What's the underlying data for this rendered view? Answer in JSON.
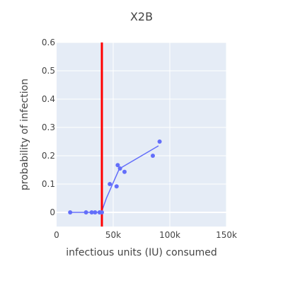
{
  "chart_data": {
    "type": "scatter",
    "title": "X2B",
    "xlabel": "infectious units (IU) consumed",
    "ylabel": "probability of infection",
    "xlim": [
      0,
      150000
    ],
    "ylim": [
      -0.05,
      0.6
    ],
    "x_ticks": [
      0,
      50000,
      100000,
      150000
    ],
    "x_tick_labels": [
      "0",
      "50k",
      "100k",
      "150k"
    ],
    "y_ticks": [
      0,
      0.1,
      0.2,
      0.3,
      0.4,
      0.5,
      0.6
    ],
    "y_tick_labels": [
      "0",
      "0.1",
      "0.2",
      "0.3",
      "0.4",
      "0.5",
      "0.6"
    ],
    "grid": true,
    "colors": {
      "plot_background": "#e5ecf6",
      "grid": "#ffffff",
      "series": "#636efa",
      "threshold_line": "#ff0000"
    },
    "threshold_line": {
      "x": 40000
    },
    "series": [
      {
        "mode": "markers",
        "points": [
          {
            "x": 12000,
            "y": 0
          },
          {
            "x": 26000,
            "y": 0
          },
          {
            "x": 31000,
            "y": 0
          },
          {
            "x": 34000,
            "y": 0
          },
          {
            "x": 38000,
            "y": 0
          },
          {
            "x": 40000,
            "y": 0
          },
          {
            "x": 47000,
            "y": 0.1
          },
          {
            "x": 53000,
            "y": 0.092
          },
          {
            "x": 54000,
            "y": 0.167
          },
          {
            "x": 56000,
            "y": 0.155
          },
          {
            "x": 60000,
            "y": 0.143
          },
          {
            "x": 85000,
            "y": 0.2
          },
          {
            "x": 91000,
            "y": 0.25
          }
        ]
      },
      {
        "mode": "line",
        "points": [
          {
            "x": 12000,
            "y": 0
          },
          {
            "x": 36000,
            "y": 0
          },
          {
            "x": 40000,
            "y": 0.005
          },
          {
            "x": 44000,
            "y": 0.05
          },
          {
            "x": 50000,
            "y": 0.105
          },
          {
            "x": 55000,
            "y": 0.15
          },
          {
            "x": 58000,
            "y": 0.16
          },
          {
            "x": 90000,
            "y": 0.235
          }
        ]
      }
    ]
  }
}
